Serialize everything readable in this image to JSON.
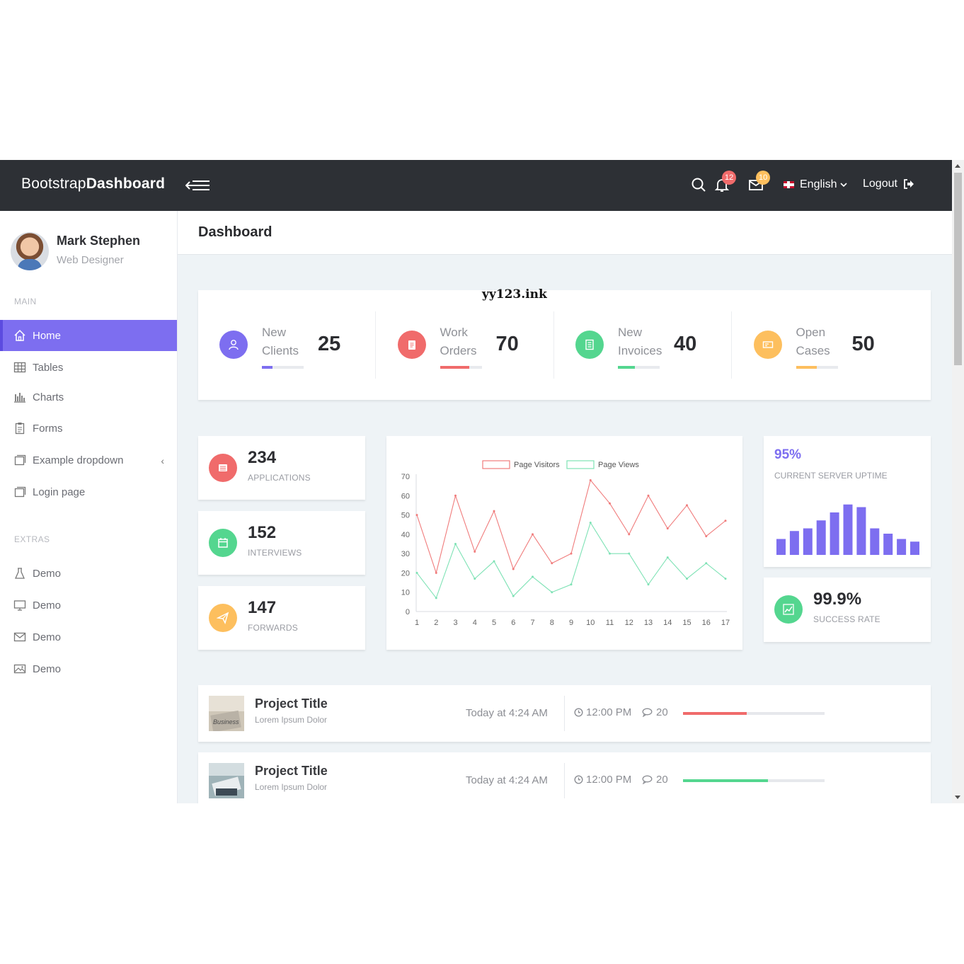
{
  "header": {
    "brand_light": "Bootstrap",
    "brand_bold": "Dashboard",
    "notifications_count": "12",
    "messages_count": "10",
    "language": "English",
    "logout_label": "Logout"
  },
  "profile": {
    "name": "Mark Stephen",
    "role": "Web Designer"
  },
  "sidebar": {
    "main_label": "MAIN",
    "items": [
      {
        "label": "Home",
        "icon": "home-icon",
        "active": true
      },
      {
        "label": "Tables",
        "icon": "grid-icon"
      },
      {
        "label": "Charts",
        "icon": "bar-chart-icon"
      },
      {
        "label": "Forms",
        "icon": "clipboard-icon"
      },
      {
        "label": "Example dropdown",
        "icon": "window-icon"
      },
      {
        "label": "Login page",
        "icon": "window-icon"
      }
    ],
    "extras_label": "EXTRAS",
    "extras": [
      {
        "label": "Demo",
        "icon": "flask-icon"
      },
      {
        "label": "Demo",
        "icon": "monitor-icon"
      },
      {
        "label": "Demo",
        "icon": "mail-icon"
      },
      {
        "label": "Demo",
        "icon": "picture-icon"
      }
    ]
  },
  "page": {
    "title": "Dashboard"
  },
  "stats": [
    {
      "label_1": "New",
      "label_2": "Clients",
      "value": "25",
      "color": "#7d6ef0",
      "progress": 0.25
    },
    {
      "label_1": "Work",
      "label_2": "Orders",
      "value": "70",
      "color": "#f06b6b",
      "progress": 0.7
    },
    {
      "label_1": "New",
      "label_2": "Invoices",
      "value": "40",
      "color": "#54d68f",
      "progress": 0.4
    },
    {
      "label_1": "Open",
      "label_2": "Cases",
      "value": "50",
      "color": "#fdbf5e",
      "progress": 0.5
    }
  ],
  "mini_stats": [
    {
      "value": "234",
      "label": "APPLICATIONS",
      "color": "#f06b6b",
      "icon": "list-icon"
    },
    {
      "value": "152",
      "label": "INTERVIEWS",
      "color": "#54d68f",
      "icon": "calendar-icon"
    },
    {
      "value": "147",
      "label": "FORWARDS",
      "color": "#fdbf5e",
      "icon": "paper-plane-icon"
    }
  ],
  "uptime": {
    "value": "95%",
    "label": "CURRENT SERVER UPTIME",
    "color": "#7d6ef0"
  },
  "success": {
    "value": "99.9%",
    "label": "SUCCESS RATE",
    "color": "#54d68f"
  },
  "chart_data": [
    {
      "type": "line",
      "x": [
        1,
        2,
        3,
        4,
        5,
        6,
        7,
        8,
        9,
        10,
        11,
        12,
        13,
        14,
        15,
        16,
        17
      ],
      "series": [
        {
          "name": "Page Visitors",
          "color": "#f07c7c",
          "values": [
            50,
            20,
            60,
            31,
            52,
            22,
            40,
            25,
            30,
            68,
            56,
            40,
            60,
            43,
            55,
            39,
            47
          ]
        },
        {
          "name": "Page Views",
          "color": "#7ee2b5",
          "values": [
            20,
            7,
            35,
            17,
            26,
            8,
            18,
            10,
            14,
            46,
            30,
            30,
            14,
            28,
            17,
            25,
            17
          ]
        }
      ],
      "ylim": [
        0,
        70
      ],
      "yticks": [
        0,
        10,
        20,
        30,
        40,
        50,
        60,
        70
      ],
      "legend": "top"
    },
    {
      "type": "bar",
      "values": [
        30,
        45,
        50,
        65,
        80,
        95,
        90,
        50,
        40,
        30,
        25
      ],
      "color": "#7d6ef0"
    }
  ],
  "projects": [
    {
      "title": "Project Title",
      "subtitle": "Lorem Ipsum Dolor",
      "date": "Today at 4:24 AM",
      "time": "12:00 PM",
      "comments": "20",
      "progress": 0.45,
      "color": "#f06b6b"
    },
    {
      "title": "Project Title",
      "subtitle": "Lorem Ipsum Dolor",
      "date": "Today at 4:24 AM",
      "time": "12:00 PM",
      "comments": "20",
      "progress": 0.6,
      "color": "#54d68f"
    }
  ],
  "watermark": "yy123.ink"
}
